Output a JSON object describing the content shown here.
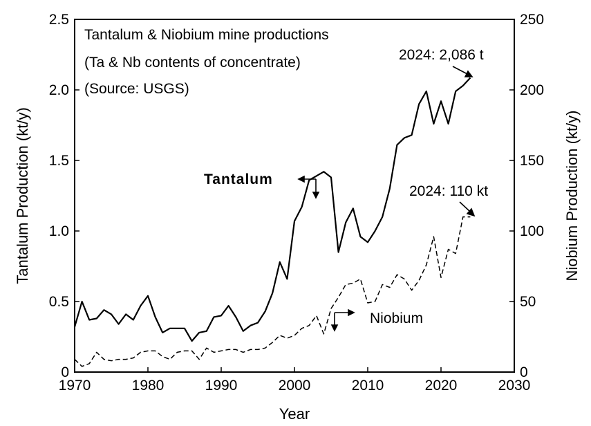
{
  "chart_data": {
    "type": "line",
    "title_lines": [
      "Tantalum & Niobium mine productions",
      "(Ta & Nb contents of concentrate)",
      "(Source: USGS)"
    ],
    "xlabel": "Year",
    "ylabel_left": "Tantalum Production (kt/y)",
    "ylabel_right": "Niobium Production (kt/y)",
    "xlim": [
      1970,
      2030
    ],
    "ylim_left": [
      0,
      2.5
    ],
    "ylim_right": [
      0,
      250
    ],
    "x_ticks": [
      "1970",
      "1980",
      "1990",
      "2000",
      "2010",
      "2020",
      "2030"
    ],
    "y_left_ticks": [
      "0",
      "0.5",
      "1.0",
      "1.5",
      "2.0",
      "2.5"
    ],
    "y_right_ticks": [
      "0",
      "50",
      "100",
      "150",
      "200",
      "250"
    ],
    "grid": false,
    "series": [
      {
        "name": "Tantalum",
        "axis": "left",
        "style": "solid",
        "x": [
          1970,
          1971,
          1972,
          1973,
          1974,
          1975,
          1976,
          1977,
          1978,
          1979,
          1980,
          1981,
          1982,
          1983,
          1984,
          1985,
          1986,
          1987,
          1988,
          1989,
          1990,
          1991,
          1992,
          1993,
          1994,
          1995,
          1996,
          1997,
          1998,
          1999,
          2000,
          2001,
          2002,
          2003,
          2004,
          2005,
          2006,
          2007,
          2008,
          2009,
          2010,
          2011,
          2012,
          2013,
          2014,
          2015,
          2016,
          2017,
          2018,
          2019,
          2020,
          2021,
          2022,
          2023,
          2024
        ],
        "values": [
          0.32,
          0.5,
          0.37,
          0.38,
          0.44,
          0.41,
          0.34,
          0.41,
          0.37,
          0.47,
          0.54,
          0.39,
          0.28,
          0.31,
          0.31,
          0.31,
          0.22,
          0.28,
          0.29,
          0.39,
          0.4,
          0.47,
          0.39,
          0.29,
          0.33,
          0.35,
          0.43,
          0.56,
          0.78,
          0.66,
          1.07,
          1.17,
          1.36,
          1.39,
          1.42,
          1.38,
          0.85,
          1.06,
          1.16,
          0.96,
          0.92,
          1.0,
          1.1,
          1.3,
          1.61,
          1.66,
          1.68,
          1.9,
          1.99,
          1.76,
          1.92,
          1.76,
          1.99,
          2.03,
          2.086
        ]
      },
      {
        "name": "Niobium",
        "axis": "right",
        "style": "dashed",
        "x": [
          1970,
          1971,
          1972,
          1973,
          1974,
          1975,
          1976,
          1977,
          1978,
          1979,
          1980,
          1981,
          1982,
          1983,
          1984,
          1985,
          1986,
          1987,
          1988,
          1989,
          1990,
          1991,
          1992,
          1993,
          1994,
          1995,
          1996,
          1997,
          1998,
          1999,
          2000,
          2001,
          2002,
          2003,
          2004,
          2005,
          2006,
          2007,
          2008,
          2009,
          2010,
          2011,
          2012,
          2013,
          2014,
          2015,
          2016,
          2017,
          2018,
          2019,
          2020,
          2021,
          2022,
          2023,
          2024
        ],
        "values": [
          9,
          4,
          6,
          14,
          9,
          8,
          9,
          9,
          10,
          14,
          15,
          15,
          11,
          9,
          14,
          15,
          15,
          9,
          17,
          14,
          15,
          16,
          16,
          14,
          16,
          16,
          17,
          21,
          26,
          24,
          26,
          31,
          33,
          40,
          27,
          45,
          53,
          62,
          63,
          66,
          49,
          50,
          62,
          60,
          69,
          66,
          58,
          65,
          76,
          96,
          67,
          87,
          84,
          110,
          110
        ]
      }
    ],
    "annotations": {
      "tantalum_label": "Tantalum",
      "niobium_label": "Niobium",
      "ta_2024": "2024: 2,086 t",
      "nb_2024": "2024: 110 kt"
    }
  }
}
